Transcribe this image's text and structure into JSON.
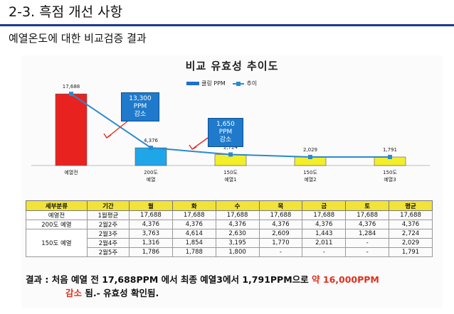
{
  "slide": {
    "title": "2-3.  흑점 개선 사항",
    "subtitle": "예열온도에 대한 비교검증 결과"
  },
  "chart_data": {
    "type": "bar",
    "title": "비교 유효성 추이도",
    "legend": [
      "클링 PPM",
      "추이"
    ],
    "categories": [
      "예열전",
      "200도 예열",
      "150도 예열1",
      "150도 예열2",
      "150도 예열3"
    ],
    "category_labels": [
      [
        "예열전"
      ],
      [
        "200도",
        "예열"
      ],
      [
        "150도",
        "예열1"
      ],
      [
        "150도",
        "예열2"
      ],
      [
        "150도",
        "예열3"
      ]
    ],
    "values": [
      17688,
      4376,
      2724,
      2029,
      1791
    ],
    "value_labels": [
      "17,688",
      "4,376",
      "2,724",
      "2,029",
      "1,791"
    ],
    "bar_colors": [
      "#e8231f",
      "#1fa6e8",
      "#f2ee2a",
      "#f2ee2a",
      "#f2ee2a"
    ],
    "line_color": "#2a8ad0",
    "ylim": [
      0,
      20000
    ],
    "annotations": [
      {
        "lines": [
          "13,300",
          "PPM",
          "감소"
        ]
      },
      {
        "lines": [
          "1,650",
          "PPM",
          "감소"
        ]
      }
    ]
  },
  "table": {
    "headers": [
      "세부분류",
      "기간",
      "월",
      "화",
      "수",
      "목",
      "금",
      "토",
      "평균"
    ],
    "groups": [
      {
        "label": "예열전",
        "rows": [
          [
            "1월평균",
            "17,688",
            "17,688",
            "17,688",
            "17,688",
            "17,688",
            "17,688",
            "17,688"
          ]
        ]
      },
      {
        "label": "200도 예열",
        "rows": [
          [
            "2월2주",
            "4,376",
            "4,376",
            "4,376",
            "4,376",
            "4,376",
            "4,376",
            "4,376"
          ]
        ]
      },
      {
        "label": "150도 예열",
        "rows": [
          [
            "2월3주",
            "3,763",
            "4,614",
            "2,630",
            "2,609",
            "1,443",
            "1,284",
            "2,724"
          ],
          [
            "2월4주",
            "1,316",
            "1,854",
            "3,195",
            "1,770",
            "2,011",
            "-",
            "2,029"
          ],
          [
            "2월5주",
            "1,786",
            "1,788",
            "1,800",
            "-",
            "-",
            "-",
            "1,791"
          ]
        ]
      }
    ]
  },
  "conclusion": {
    "part1": "결과 : 처음 예열 전 17,688PPM 에서 최종 예열3에서 1,791PPM으로 ",
    "highlight1": "약 16,000PPM",
    "highlight2": "감소",
    "part2": " 됨.- 유효성 확인됨."
  }
}
